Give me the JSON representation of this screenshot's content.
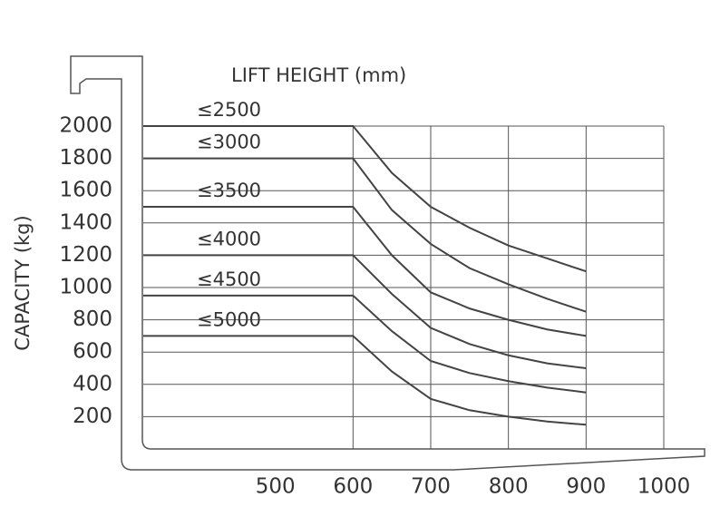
{
  "chart_data": {
    "type": "line",
    "x_label": "LIFT HEIGHT (mm)",
    "y_label": "CAPACITY (kg)",
    "xlim": [
      330,
      1000
    ],
    "xticks": [
      500,
      600,
      700,
      800,
      900,
      1000
    ],
    "ylim": [
      0,
      2000
    ],
    "yticks": [
      200,
      400,
      600,
      800,
      1000,
      1200,
      1400,
      1600,
      1800,
      2000
    ],
    "grid": true,
    "x": [
      330,
      600,
      650,
      700,
      750,
      800,
      850,
      900
    ],
    "series": [
      {
        "name": "≤2500",
        "color": "#444444",
        "values": [
          2000,
          2000,
          1710,
          1500,
          1370,
          1260,
          1180,
          1100
        ]
      },
      {
        "name": "≤3000",
        "color": "#444444",
        "values": [
          1800,
          1800,
          1480,
          1270,
          1120,
          1020,
          930,
          850
        ]
      },
      {
        "name": "≤3500",
        "color": "#444444",
        "values": [
          1500,
          1500,
          1200,
          970,
          870,
          800,
          740,
          700
        ]
      },
      {
        "name": "≤4000",
        "color": "#444444",
        "values": [
          1200,
          1200,
          960,
          750,
          650,
          580,
          530,
          500
        ]
      },
      {
        "name": "≤4500",
        "color": "#444444",
        "values": [
          950,
          950,
          730,
          545,
          470,
          420,
          380,
          350
        ]
      },
      {
        "name": "≤5000",
        "color": "#444444",
        "values": [
          700,
          700,
          480,
          310,
          240,
          200,
          170,
          150
        ]
      }
    ]
  }
}
